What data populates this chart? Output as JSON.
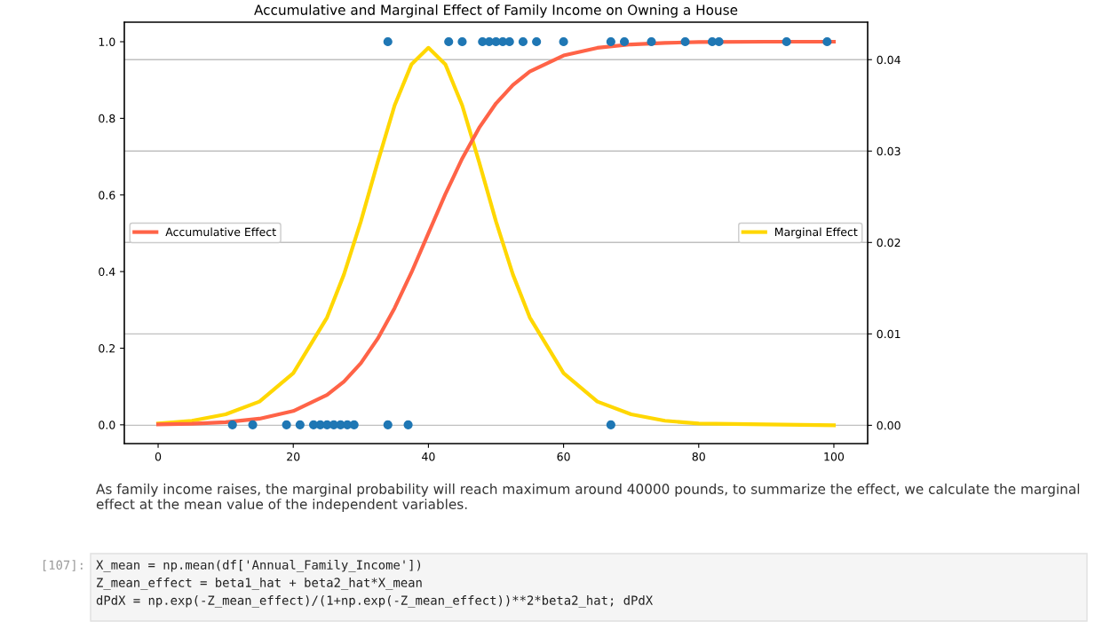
{
  "chart_data": {
    "type": "line",
    "title": "Accumulative and Marginal Effect of Family Income on Owning a House",
    "xlim": [
      -5,
      105
    ],
    "xticks": [
      0,
      20,
      40,
      60,
      80,
      100
    ],
    "ylim": [
      -0.049,
      1.051
    ],
    "yticks": [
      {
        "value": 0,
        "label": "0.0"
      },
      {
        "value": 0.2,
        "label": "0.2"
      },
      {
        "value": 0.4,
        "label": "0.4"
      },
      {
        "value": 0.6,
        "label": "0.6"
      },
      {
        "value": 0.8,
        "label": "0.8"
      },
      {
        "value": 1,
        "label": "1.0"
      }
    ],
    "y2lim": [
      -0.002,
      0.0441
    ],
    "y2ticks": [
      {
        "value": 0,
        "label": "0.00"
      },
      {
        "value": 0.01,
        "label": "0.01"
      },
      {
        "value": 0.02,
        "label": "0.02"
      },
      {
        "value": 0.03,
        "label": "0.03"
      },
      {
        "value": 0.04,
        "label": "0.04"
      }
    ],
    "grid": "y",
    "legend": "left",
    "series": [
      {
        "type": "scatter",
        "color": "#1f77b4",
        "marker": "circle",
        "x": [
          34,
          43,
          45,
          48,
          49,
          50,
          51,
          52,
          54,
          56,
          60,
          67,
          69,
          73,
          78,
          82,
          83,
          93,
          99,
          11,
          14,
          19,
          21,
          23,
          24,
          25,
          26,
          27,
          28,
          29,
          34,
          37,
          67
        ],
        "values": [
          1,
          1,
          1,
          1,
          1,
          1,
          1,
          1,
          1,
          1,
          1,
          1,
          1,
          1,
          1,
          1,
          1,
          1,
          1,
          0,
          0,
          0,
          0,
          0,
          0,
          0,
          0,
          0,
          0,
          0,
          0,
          0,
          0
        ]
      },
      {
        "name": "Accumulative Effect",
        "color": "#ff6347",
        "x": [
          0,
          5,
          10,
          15,
          20,
          25,
          27.5,
          30,
          32.5,
          35,
          37.5,
          40,
          42.5,
          45,
          47.5,
          50,
          52.5,
          55,
          60,
          65,
          70,
          75,
          80,
          90,
          100
        ],
        "values": [
          0.001,
          0.003,
          0.007,
          0.016,
          0.036,
          0.078,
          0.113,
          0.161,
          0.225,
          0.305,
          0.398,
          0.5,
          0.602,
          0.695,
          0.775,
          0.839,
          0.887,
          0.922,
          0.964,
          0.984,
          0.993,
          0.997,
          0.999,
          1.0,
          1.0
        ]
      },
      {
        "name": "Marginal Effect",
        "color": "#ffd700",
        "axis": "y2",
        "x": [
          0,
          5,
          10,
          15,
          20,
          25,
          27.5,
          30,
          32.5,
          35,
          37.5,
          40,
          42.5,
          45,
          47.5,
          50,
          52.5,
          55,
          60,
          65,
          70,
          75,
          80,
          90,
          100
        ],
        "values": [
          0.0002,
          0.0005,
          0.0012,
          0.0026,
          0.0057,
          0.0118,
          0.0165,
          0.0223,
          0.0288,
          0.035,
          0.0395,
          0.0413,
          0.0395,
          0.035,
          0.0288,
          0.0223,
          0.0165,
          0.0118,
          0.0057,
          0.0026,
          0.0012,
          0.0005,
          0.0002,
          0.0001,
          0.0
        ]
      }
    ],
    "annotations": [
      "As family income raises, the marginal probability will reach maximum around 40000 pounds, to summarize the effect, we calculate the marginal effect at the mean value of the independent variables.",
      "[107]:",
      "X_mean = np.mean(df['Annual_Family_Income'])",
      "Z_mean_effect = beta1_hat + beta2_hat*X_mean",
      "dPdX = np.exp(-Z_mean_effect)/(1+np.exp(-Z_mean_effect))**2*beta2_hat; dPdX"
    ]
  }
}
